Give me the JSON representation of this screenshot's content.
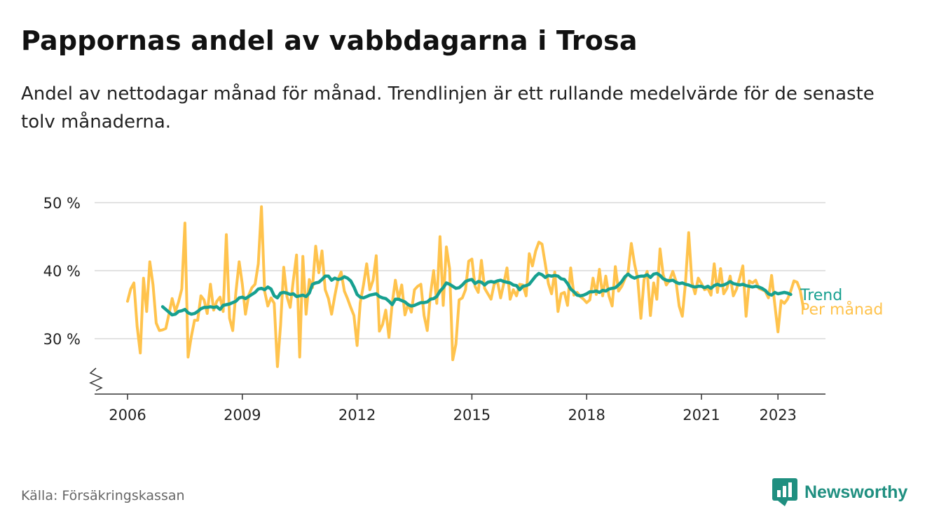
{
  "header": {
    "title": "Pappornas andel av vabbdagarna i Trosa",
    "subtitle": "Andel av nettodagar månad för månad. Trendlinjen är ett rullande medelvärde för de senaste tolv månaderna."
  },
  "footer": {
    "source": "Källa: Försäkringskassan",
    "brand": "Newsworthy"
  },
  "colors": {
    "monthly": "#ffc34d",
    "trend": "#17a090",
    "grid": "#d9d9d9",
    "axis": "#333333",
    "brand": "#1f8f80"
  },
  "chart_data": {
    "type": "line",
    "title": "Pappornas andel av vabbdagarna i Trosa",
    "x_start": "2006-01",
    "x_frequency": "monthly",
    "x_ticks": [
      "2006",
      "2009",
      "2012",
      "2015",
      "2018",
      "2021",
      "2023"
    ],
    "y_ticks": [
      "30 %",
      "40 %",
      "50 %"
    ],
    "ylim": [
      22,
      50
    ],
    "y_axis_break": true,
    "grid": true,
    "series": [
      {
        "name": "Per månad",
        "key": "monthly",
        "color": "#ffc34d",
        "values": [
          35.5,
          37.3,
          38.2,
          31.8,
          27.9,
          38.9,
          34.0,
          41.3,
          37.9,
          32.3,
          31.2,
          31.3,
          31.5,
          33.6,
          35.9,
          34.0,
          35.4,
          37.3,
          47.0,
          27.3,
          30.3,
          32.7,
          32.7,
          36.3,
          35.7,
          33.7,
          38.0,
          34.2,
          35.5,
          36.1,
          34.0,
          45.3,
          33.0,
          31.2,
          36.9,
          41.3,
          38.0,
          33.6,
          36.4,
          37.5,
          38.0,
          41.0,
          49.4,
          37.0,
          34.8,
          36.0,
          35.2,
          25.9,
          32.0,
          40.5,
          36.2,
          34.6,
          38.6,
          42.3,
          27.3,
          42.1,
          33.6,
          38.7,
          37.5,
          43.6,
          39.7,
          42.9,
          37.2,
          35.9,
          33.6,
          36.3,
          38.7,
          39.8,
          37.0,
          35.9,
          34.6,
          33.4,
          29.0,
          35.3,
          37.9,
          41.0,
          37.2,
          38.6,
          42.2,
          31.1,
          32.1,
          34.2,
          30.2,
          35.2,
          38.6,
          35.8,
          37.9,
          33.5,
          35.1,
          33.9,
          37.2,
          37.7,
          38.0,
          33.4,
          31.2,
          36.5,
          40.0,
          35.2,
          45.0,
          34.9,
          43.5,
          40.3,
          26.9,
          29.2,
          35.7,
          36.0,
          37.2,
          41.4,
          41.7,
          37.7,
          36.8,
          41.5,
          37.4,
          36.6,
          35.8,
          38.0,
          38.5,
          36.0,
          38.1,
          40.4,
          35.8,
          37.2,
          36.3,
          38.0,
          37.9,
          36.3,
          42.5,
          40.7,
          42.9,
          44.2,
          43.9,
          41.0,
          38.1,
          36.6,
          39.8,
          34.0,
          36.6,
          36.8,
          34.9,
          40.4,
          36.4,
          36.8,
          36.2,
          35.8,
          35.3,
          35.7,
          38.9,
          36.5,
          40.2,
          36.3,
          39.2,
          36.3,
          34.8,
          40.6,
          37.0,
          37.7,
          38.8,
          39.7,
          44.0,
          41.0,
          38.8,
          33.0,
          38.7,
          39.9,
          33.4,
          38.2,
          35.8,
          43.2,
          39.4,
          37.9,
          38.6,
          39.9,
          38.5,
          34.8,
          33.3,
          38.2,
          45.6,
          38.3,
          36.6,
          38.9,
          38.1,
          37.2,
          37.4,
          36.4,
          41.0,
          36.8,
          40.3,
          36.6,
          37.4,
          39.2,
          36.3,
          37.3,
          38.9,
          40.7,
          33.3,
          38.5,
          38.2,
          38.6,
          37.4,
          37.2,
          37.0,
          36.0,
          39.3,
          35.0,
          31.0,
          35.6,
          35.2,
          35.8,
          37.0,
          38.5,
          38.3,
          37.1,
          34.4
        ]
      },
      {
        "name": "Trend",
        "key": "trend",
        "color": "#17a090",
        "values": [
          null,
          null,
          null,
          null,
          null,
          null,
          null,
          null,
          null,
          null,
          null,
          34.7,
          34.3,
          33.9,
          33.5,
          33.6,
          34.0,
          34.1,
          34.3,
          33.8,
          33.6,
          33.7,
          34.0,
          34.4,
          34.6,
          34.6,
          34.7,
          34.6,
          34.7,
          34.3,
          34.9,
          35.0,
          35.1,
          35.3,
          35.5,
          36.0,
          36.1,
          35.9,
          36.2,
          36.5,
          36.8,
          37.3,
          37.4,
          37.2,
          37.6,
          37.3,
          36.3,
          36.0,
          36.7,
          36.8,
          36.7,
          36.5,
          36.6,
          36.2,
          36.3,
          36.4,
          36.2,
          36.7,
          38.0,
          38.2,
          38.3,
          38.7,
          39.2,
          39.2,
          38.6,
          38.9,
          38.7,
          38.8,
          39.1,
          38.9,
          38.5,
          37.6,
          36.5,
          36.1,
          36.0,
          36.2,
          36.4,
          36.5,
          36.6,
          36.2,
          36.0,
          35.9,
          35.5,
          35.0,
          35.8,
          35.8,
          35.6,
          35.4,
          35.0,
          34.8,
          34.9,
          35.1,
          35.3,
          35.3,
          35.4,
          35.8,
          35.9,
          36.2,
          37.0,
          37.5,
          38.2,
          38.0,
          37.7,
          37.4,
          37.5,
          37.9,
          38.4,
          38.6,
          38.7,
          38.1,
          38.4,
          38.3,
          37.9,
          38.3,
          38.4,
          38.3,
          38.5,
          38.6,
          38.4,
          38.3,
          38.2,
          37.9,
          37.8,
          37.2,
          37.7,
          37.8,
          38.0,
          38.6,
          39.2,
          39.6,
          39.4,
          39.0,
          39.3,
          39.2,
          39.3,
          39.2,
          38.8,
          38.7,
          38.1,
          37.3,
          36.9,
          36.4,
          36.3,
          36.4,
          36.6,
          36.9,
          36.9,
          37.0,
          36.8,
          37.1,
          37.0,
          37.3,
          37.4,
          37.5,
          37.9,
          38.4,
          39.1,
          39.5,
          39.1,
          38.9,
          39.1,
          39.2,
          39.2,
          39.4,
          39.0,
          39.5,
          39.6,
          39.3,
          38.8,
          38.6,
          38.5,
          38.6,
          38.3,
          38.1,
          38.2,
          38.0,
          37.9,
          37.7,
          37.6,
          37.7,
          37.7,
          37.5,
          37.7,
          37.4,
          37.8,
          38.0,
          37.8,
          37.9,
          38.1,
          38.4,
          38.1,
          38.0,
          37.9,
          38.0,
          37.8,
          37.7,
          37.6,
          37.7,
          37.6,
          37.4,
          37.1,
          36.6,
          36.4,
          36.8,
          36.6,
          36.7,
          36.8,
          36.7,
          36.5
        ]
      }
    ]
  }
}
